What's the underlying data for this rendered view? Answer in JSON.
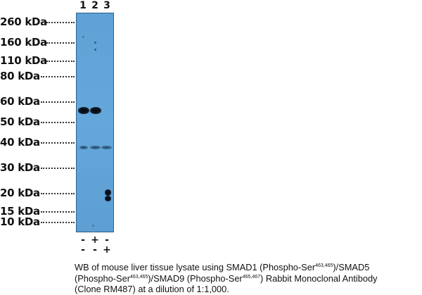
{
  "lanes": [
    "1",
    "2",
    "3"
  ],
  "markers": [
    "260 kDa",
    "160 kDa",
    "110 kDa",
    "80 kDa",
    "60 kDa",
    "50 kDa",
    "40 kDa",
    "30 kDa",
    "20 kDa",
    "15 kDa",
    "10 kDa"
  ],
  "treatment_rows": [
    [
      "-",
      "+",
      "-"
    ],
    [
      "-",
      "-",
      "+"
    ]
  ],
  "caption": {
    "line1_a": "WB of mouse liver tissue lysate using SMAD1 (Phospho-Ser",
    "sup1": "463,465",
    "line1_b": ")/SMAD5",
    "line2_a": "(Phospho-Ser",
    "sup2": "463,465",
    "line2_b": ")/SMAD9 (Phospho-Ser",
    "sup3": "465,467",
    "line2_c": ") Rabbit Monoclonal Antibody",
    "line3": "(Clone RM487) at a dilution of 1:1,000."
  },
  "colors": {
    "membrane": "#62a5d8",
    "band": "#0b1520"
  }
}
